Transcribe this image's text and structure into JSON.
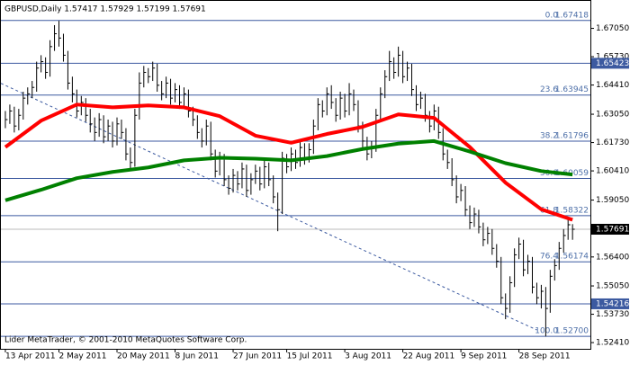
{
  "chart_data": {
    "type": "ohlc",
    "title": "GBPUSD,Daily  1.57417 1.57929 1.57199 1.57691",
    "footer": "Lider MetaTrader, © 2001-2010 MetaQuotes Software Corp.",
    "color": "#000000",
    "ylim": [
      1.5212,
      1.6833
    ],
    "yticks": [
      {
        "value": 1.6705,
        "label": "1.67050"
      },
      {
        "value": 1.6573,
        "label": "1.65730"
      },
      {
        "value": 1.6441,
        "label": "1.64410"
      },
      {
        "value": 1.6305,
        "label": "1.63050"
      },
      {
        "value": 1.6173,
        "label": "1.61730"
      },
      {
        "value": 1.6041,
        "label": "1.60410"
      },
      {
        "value": 1.5905,
        "label": "1.59050"
      },
      {
        "value": 1.564,
        "label": "1.56400"
      },
      {
        "value": 1.5505,
        "label": "1.55050"
      },
      {
        "value": 1.5373,
        "label": "1.53730"
      },
      {
        "value": 1.5241,
        "label": "1.52410"
      }
    ],
    "xlim": [
      -1,
      131
    ],
    "xticks": [
      {
        "value": 0,
        "label": "13 Apr 2011"
      },
      {
        "value": 12,
        "label": "2 May 2011"
      },
      {
        "value": 25,
        "label": "20 May 2011"
      },
      {
        "value": 38,
        "label": "8 Jun 2011"
      },
      {
        "value": 51,
        "label": "27 Jun 2011"
      },
      {
        "value": 63,
        "label": "15 Jul 2011"
      },
      {
        "value": 76,
        "label": "3 Aug 2011"
      },
      {
        "value": 89,
        "label": "22 Aug 2011"
      },
      {
        "value": 102,
        "label": "9 Sep 2011"
      },
      {
        "value": 115,
        "label": "28 Sep 2011"
      }
    ],
    "high": [
      1.632,
      1.635,
      1.634,
      1.633,
      1.641,
      1.643,
      1.646,
      1.655,
      1.658,
      1.657,
      1.665,
      1.672,
      1.674,
      1.668,
      1.66,
      1.648,
      1.642,
      1.639,
      1.638,
      1.633,
      1.629,
      1.631,
      1.63,
      1.628,
      1.627,
      1.629,
      1.628,
      1.624,
      1.615,
      1.633,
      1.65,
      1.653,
      1.652,
      1.655,
      1.654,
      1.646,
      1.648,
      1.647,
      1.645,
      1.644,
      1.643,
      1.642,
      1.634,
      1.63,
      1.624,
      1.628,
      1.627,
      1.614,
      1.613,
      1.612,
      1.602,
      1.605,
      1.604,
      1.608,
      1.607,
      1.603,
      1.607,
      1.606,
      1.609,
      1.608,
      1.602,
      1.594,
      1.613,
      1.612,
      1.615,
      1.614,
      1.618,
      1.617,
      1.617,
      1.628,
      1.638,
      1.637,
      1.643,
      1.644,
      1.638,
      1.641,
      1.64,
      1.645,
      1.642,
      1.637,
      1.627,
      1.62,
      1.618,
      1.633,
      1.643,
      1.651,
      1.66,
      1.657,
      1.662,
      1.66,
      1.655,
      1.654,
      1.644,
      1.641,
      1.64,
      1.632,
      1.635,
      1.634,
      1.624,
      1.614,
      1.61,
      1.602,
      1.598,
      1.597,
      1.588,
      1.587,
      1.586,
      1.58,
      1.578,
      1.577,
      1.57,
      1.564,
      1.547,
      1.555,
      1.568,
      1.573,
      1.572,
      1.565,
      1.564,
      1.552,
      1.551,
      1.55,
      1.558,
      1.563,
      1.571,
      1.577,
      1.582,
      1.5793
    ],
    "low": [
      1.624,
      1.626,
      1.622,
      1.623,
      1.628,
      1.635,
      1.638,
      1.641,
      1.65,
      1.647,
      1.648,
      1.66,
      1.662,
      1.655,
      1.642,
      1.636,
      1.629,
      1.63,
      1.627,
      1.622,
      1.618,
      1.62,
      1.617,
      1.618,
      1.615,
      1.616,
      1.619,
      1.609,
      1.605,
      1.606,
      1.628,
      1.643,
      1.645,
      1.646,
      1.641,
      1.637,
      1.638,
      1.635,
      1.636,
      1.633,
      1.634,
      1.629,
      1.625,
      1.619,
      1.615,
      1.616,
      1.609,
      1.601,
      1.602,
      1.597,
      1.593,
      1.594,
      1.595,
      1.596,
      1.592,
      1.593,
      1.598,
      1.595,
      1.596,
      1.597,
      1.589,
      1.576,
      1.584,
      1.603,
      1.604,
      1.605,
      1.606,
      1.607,
      1.608,
      1.612,
      1.623,
      1.629,
      1.63,
      1.633,
      1.627,
      1.628,
      1.629,
      1.63,
      1.632,
      1.622,
      1.615,
      1.609,
      1.61,
      1.613,
      1.628,
      1.638,
      1.646,
      1.647,
      1.648,
      1.645,
      1.646,
      1.639,
      1.632,
      1.633,
      1.627,
      1.622,
      1.623,
      1.619,
      1.609,
      1.605,
      1.597,
      1.589,
      1.59,
      1.583,
      1.577,
      1.578,
      1.575,
      1.569,
      1.57,
      1.565,
      1.559,
      1.542,
      1.535,
      1.538,
      1.55,
      1.563,
      1.555,
      1.556,
      1.547,
      1.542,
      1.54,
      1.527,
      1.538,
      1.553,
      1.558,
      1.566,
      1.572,
      1.572
    ],
    "close": [
      1.628,
      1.632,
      1.625,
      1.63,
      1.638,
      1.64,
      1.643,
      1.652,
      1.655,
      1.65,
      1.662,
      1.668,
      1.666,
      1.658,
      1.645,
      1.64,
      1.632,
      1.636,
      1.63,
      1.626,
      1.622,
      1.628,
      1.62,
      1.625,
      1.618,
      1.626,
      1.622,
      1.612,
      1.608,
      1.63,
      1.645,
      1.65,
      1.648,
      1.652,
      1.644,
      1.64,
      1.645,
      1.638,
      1.642,
      1.636,
      1.64,
      1.632,
      1.628,
      1.622,
      1.618,
      1.625,
      1.612,
      1.604,
      1.61,
      1.6,
      1.596,
      1.602,
      1.598,
      1.605,
      1.595,
      1.6,
      1.604,
      1.598,
      1.606,
      1.6,
      1.592,
      1.586,
      1.61,
      1.606,
      1.612,
      1.608,
      1.615,
      1.61,
      1.614,
      1.625,
      1.635,
      1.632,
      1.64,
      1.636,
      1.63,
      1.638,
      1.632,
      1.64,
      1.635,
      1.625,
      1.618,
      1.612,
      1.615,
      1.63,
      1.64,
      1.648,
      1.655,
      1.65,
      1.658,
      1.648,
      1.652,
      1.642,
      1.635,
      1.638,
      1.63,
      1.625,
      1.632,
      1.622,
      1.612,
      1.608,
      1.6,
      1.592,
      1.595,
      1.586,
      1.58,
      1.584,
      1.578,
      1.572,
      1.575,
      1.568,
      1.562,
      1.545,
      1.54,
      1.552,
      1.565,
      1.57,
      1.558,
      1.562,
      1.55,
      1.545,
      1.548,
      1.54,
      1.555,
      1.56,
      1.568,
      1.574,
      1.579,
      1.57691
    ],
    "ma": [
      {
        "color": "#ff0000",
        "x": [
          0,
          8,
          16,
          24,
          32,
          40,
          48,
          56,
          64,
          72,
          80,
          88,
          96,
          104,
          112,
          120,
          127
        ],
        "values": [
          1.6152,
          1.6275,
          1.635,
          1.6337,
          1.6346,
          1.6337,
          1.6296,
          1.6205,
          1.6172,
          1.6213,
          1.6246,
          1.6304,
          1.6288,
          1.6152,
          1.5986,
          1.5862,
          1.5813
        ]
      },
      {
        "color": "#008000",
        "x": [
          0,
          8,
          16,
          24,
          32,
          40,
          48,
          56,
          64,
          72,
          80,
          88,
          96,
          104,
          112,
          120,
          127
        ],
        "values": [
          1.5904,
          1.5953,
          1.6007,
          1.6036,
          1.6057,
          1.609,
          1.6102,
          1.6098,
          1.609,
          1.611,
          1.6143,
          1.6168,
          1.618,
          1.6131,
          1.6077,
          1.604,
          1.6024
        ]
      }
    ],
    "fib_levels": [
      {
        "ratio": "0.0",
        "value": 1.67418,
        "value_label": "1.67418"
      },
      {
        "ratio": "23.6",
        "value": 1.63945,
        "value_label": "1.63945"
      },
      {
        "ratio": "38.2",
        "value": 1.61796,
        "value_label": "1.61796"
      },
      {
        "ratio": "50.0",
        "value": 1.60059,
        "value_label": "1.60059"
      },
      {
        "ratio": "61.8",
        "value": 1.58322,
        "value_label": "1.58322"
      },
      {
        "ratio": "76.4",
        "value": 1.56174,
        "value_label": "1.56174"
      },
      {
        "ratio": "100.0",
        "value": 1.527,
        "value_label": "1.52700"
      }
    ],
    "hlines": [
      1.65423,
      1.54216
    ],
    "current_price": 1.57691,
    "trendline": {
      "x": [
        -1,
        119
      ],
      "values": [
        1.6449,
        1.53
      ]
    }
  }
}
